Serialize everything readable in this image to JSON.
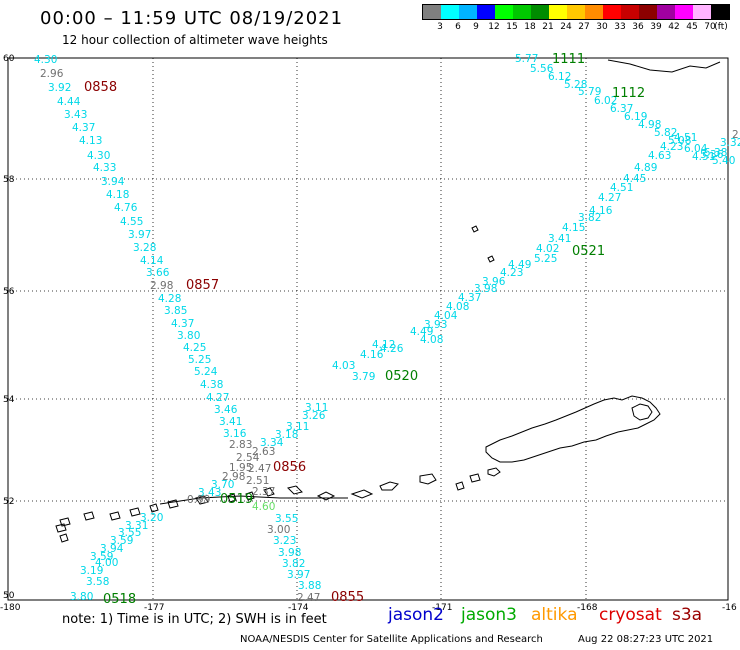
{
  "header": {
    "title": "00:00 – 11:59 UTC 08/19/2021",
    "subtitle": "12 hour collection of altimeter wave heights"
  },
  "legend": {
    "swatches": [
      {
        "label": "3",
        "color": "#7f7f7f"
      },
      {
        "label": "6",
        "color": "#00ffff"
      },
      {
        "label": "9",
        "color": "#00b4ff"
      },
      {
        "label": "12",
        "color": "#0000ff"
      },
      {
        "label": "15",
        "color": "#00ff00"
      },
      {
        "label": "18",
        "color": "#00c800"
      },
      {
        "label": "21",
        "color": "#008c00"
      },
      {
        "label": "24",
        "color": "#ffff00"
      },
      {
        "label": "27",
        "color": "#ffc800"
      },
      {
        "label": "30",
        "color": "#ff8c00"
      },
      {
        "label": "33",
        "color": "#ff0000"
      },
      {
        "label": "36",
        "color": "#c80000"
      },
      {
        "label": "39",
        "color": "#8c0000"
      },
      {
        "label": "42",
        "color": "#a000a0"
      },
      {
        "label": "45",
        "color": "#ff00ff"
      },
      {
        "label": "70",
        "color": "#ffb4ff"
      },
      {
        "label": "",
        "color": "#000000"
      }
    ],
    "unit": "(ft)"
  },
  "axes": {
    "lon_labels": [
      "-180",
      "-177",
      "-174",
      "-171",
      "-168",
      "-16"
    ],
    "lat_labels": [
      "60",
      "58",
      "56",
      "54",
      "52",
      "50"
    ]
  },
  "colors": {
    "cyan": "#00d8e8",
    "gray": "#707070",
    "green": "#007f00",
    "maroon": "#8b0000",
    "lightgreen": "#66dd66"
  },
  "wave_heights": [
    {
      "text": "4.30",
      "c": "cyan"
    },
    {
      "text": "2.96",
      "c": "gray"
    },
    {
      "text": "3.92",
      "c": "cyan"
    },
    {
      "text": "4.44",
      "c": "cyan"
    },
    {
      "text": "3.43",
      "c": "cyan"
    },
    {
      "text": "4.37",
      "c": "cyan"
    },
    {
      "text": "4.13",
      "c": "cyan"
    },
    {
      "text": "4.30",
      "c": "cyan"
    },
    {
      "text": "4.33",
      "c": "cyan"
    },
    {
      "text": "3.94",
      "c": "cyan"
    },
    {
      "text": "4.18",
      "c": "cyan"
    },
    {
      "text": "4.76",
      "c": "cyan"
    },
    {
      "text": "4.55",
      "c": "cyan"
    },
    {
      "text": "3.97",
      "c": "cyan"
    },
    {
      "text": "3.28",
      "c": "cyan"
    },
    {
      "text": "4.14",
      "c": "cyan"
    },
    {
      "text": "3.66",
      "c": "cyan"
    },
    {
      "text": "2.98",
      "c": "gray"
    },
    {
      "text": "4.28",
      "c": "cyan"
    },
    {
      "text": "3.85",
      "c": "cyan"
    },
    {
      "text": "4.37",
      "c": "cyan"
    },
    {
      "text": "3.80",
      "c": "cyan"
    },
    {
      "text": "4.25",
      "c": "cyan"
    },
    {
      "text": "5.25",
      "c": "cyan"
    },
    {
      "text": "5.24",
      "c": "cyan"
    },
    {
      "text": "4.38",
      "c": "cyan"
    },
    {
      "text": "4.27",
      "c": "cyan"
    },
    {
      "text": "3.46",
      "c": "cyan"
    },
    {
      "text": "3.41",
      "c": "cyan"
    },
    {
      "text": "3.16",
      "c": "cyan"
    },
    {
      "text": "2.83",
      "c": "gray"
    },
    {
      "text": "2.63",
      "c": "gray"
    },
    {
      "text": "2.54",
      "c": "gray"
    },
    {
      "text": "2.47",
      "c": "gray"
    },
    {
      "text": "1.95",
      "c": "gray"
    },
    {
      "text": "2.98",
      "c": "gray"
    },
    {
      "text": "2.51",
      "c": "gray"
    },
    {
      "text": "3.70",
      "c": "cyan"
    },
    {
      "text": "2.37",
      "c": "gray"
    },
    {
      "text": "3.43",
      "c": "cyan"
    },
    {
      "text": "0.99",
      "c": "gray"
    },
    {
      "text": "4.60",
      "c": "lightgreen"
    },
    {
      "text": "3.55",
      "c": "cyan"
    },
    {
      "text": "3.00",
      "c": "gray"
    },
    {
      "text": "3.23",
      "c": "cyan"
    },
    {
      "text": "3.98",
      "c": "cyan"
    },
    {
      "text": "3.82",
      "c": "cyan"
    },
    {
      "text": "3.97",
      "c": "cyan"
    },
    {
      "text": "3.88",
      "c": "cyan"
    },
    {
      "text": "2.47",
      "c": "gray"
    },
    {
      "text": "3.80",
      "c": "cyan"
    },
    {
      "text": "3.58",
      "c": "cyan"
    },
    {
      "text": "3.19",
      "c": "cyan"
    },
    {
      "text": "4.00",
      "c": "cyan"
    },
    {
      "text": "3.59",
      "c": "cyan"
    },
    {
      "text": "3.94",
      "c": "cyan"
    },
    {
      "text": "3.59",
      "c": "cyan"
    },
    {
      "text": "3.55",
      "c": "cyan"
    },
    {
      "text": "3.31",
      "c": "cyan"
    },
    {
      "text": "3.20",
      "c": "cyan"
    },
    {
      "text": "3.34",
      "c": "cyan"
    },
    {
      "text": "3.18",
      "c": "cyan"
    },
    {
      "text": "3.11",
      "c": "cyan"
    },
    {
      "text": "3.26",
      "c": "cyan"
    },
    {
      "text": "3.11",
      "c": "cyan"
    },
    {
      "text": "3.79",
      "c": "cyan"
    },
    {
      "text": "4.03",
      "c": "cyan"
    },
    {
      "text": "4.16",
      "c": "cyan"
    },
    {
      "text": "4.12",
      "c": "cyan"
    },
    {
      "text": "4.26",
      "c": "cyan"
    },
    {
      "text": "4.08",
      "c": "cyan"
    },
    {
      "text": "4.49",
      "c": "cyan"
    },
    {
      "text": "3.93",
      "c": "cyan"
    },
    {
      "text": "4.04",
      "c": "cyan"
    },
    {
      "text": "4.08",
      "c": "cyan"
    },
    {
      "text": "4.37",
      "c": "cyan"
    },
    {
      "text": "3.98",
      "c": "cyan"
    },
    {
      "text": "3.96",
      "c": "cyan"
    },
    {
      "text": "4.23",
      "c": "cyan"
    },
    {
      "text": "4.49",
      "c": "cyan"
    },
    {
      "text": "5.25",
      "c": "cyan"
    },
    {
      "text": "4.02",
      "c": "cyan"
    },
    {
      "text": "3.41",
      "c": "cyan"
    },
    {
      "text": "4.15",
      "c": "cyan"
    },
    {
      "text": "3.82",
      "c": "cyan"
    },
    {
      "text": "4.16",
      "c": "cyan"
    },
    {
      "text": "4.27",
      "c": "cyan"
    },
    {
      "text": "4.51",
      "c": "cyan"
    },
    {
      "text": "4.45",
      "c": "cyan"
    },
    {
      "text": "4.89",
      "c": "cyan"
    },
    {
      "text": "4.63",
      "c": "cyan"
    },
    {
      "text": "4.23",
      "c": "cyan"
    },
    {
      "text": "4.51",
      "c": "cyan"
    },
    {
      "text": "4.51",
      "c": "cyan"
    },
    {
      "text": "5.40",
      "c": "cyan"
    },
    {
      "text": "5.38",
      "c": "cyan"
    },
    {
      "text": "5.77",
      "c": "cyan"
    },
    {
      "text": "5.56",
      "c": "cyan"
    },
    {
      "text": "6.12",
      "c": "cyan"
    },
    {
      "text": "5.28",
      "c": "cyan"
    },
    {
      "text": "5.79",
      "c": "cyan"
    },
    {
      "text": "6.02",
      "c": "cyan"
    },
    {
      "text": "6.37",
      "c": "cyan"
    },
    {
      "text": "6.19",
      "c": "cyan"
    },
    {
      "text": "4.98",
      "c": "cyan"
    },
    {
      "text": "5.82",
      "c": "cyan"
    },
    {
      "text": "5.08",
      "c": "cyan"
    },
    {
      "text": "6.04",
      "c": "cyan"
    },
    {
      "text": "5.36",
      "c": "cyan"
    },
    {
      "text": "3.32",
      "c": "cyan"
    },
    {
      "text": "2",
      "c": "gray"
    }
  ],
  "times": [
    {
      "text": "0858",
      "c": "maroon"
    },
    {
      "text": "0857",
      "c": "maroon"
    },
    {
      "text": "0856",
      "c": "maroon"
    },
    {
      "text": "0855",
      "c": "maroon"
    },
    {
      "text": "0518",
      "c": "green"
    },
    {
      "text": "0519",
      "c": "green"
    },
    {
      "text": "0520",
      "c": "green"
    },
    {
      "text": "0521",
      "c": "green"
    },
    {
      "text": "1111",
      "c": "green"
    },
    {
      "text": "1112",
      "c": "green"
    }
  ],
  "footer": {
    "note": "note:  1) Time is in UTC;  2) SWH is in feet",
    "satellites": [
      {
        "name": "jason2",
        "color": "#0000cc"
      },
      {
        "name": "jason3",
        "color": "#00aa00"
      },
      {
        "name": "altika",
        "color": "#ff9900"
      },
      {
        "name": "cryosat",
        "color": "#dd0000"
      },
      {
        "name": "s3a",
        "color": "#990000"
      }
    ],
    "credit": "NOAA/NESDIS Center for Satellite Applications and Research",
    "timestamp": "Aug 22 08:27:23 UTC 2021"
  }
}
